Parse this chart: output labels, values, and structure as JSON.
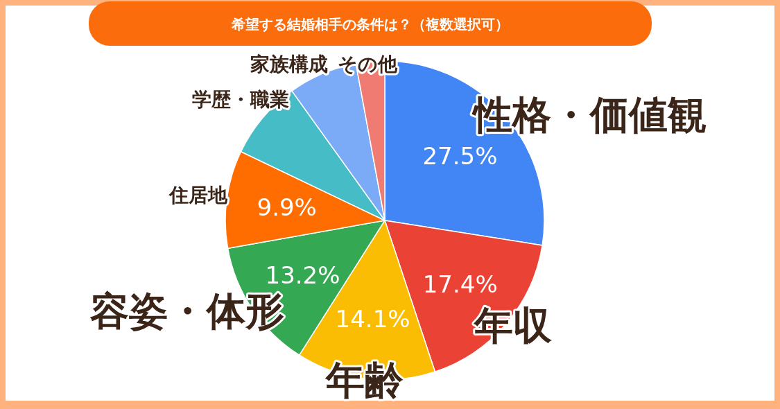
{
  "chart_data": {
    "type": "pie",
    "title": "希望する結婚相手の条件は？（複数選択可）",
    "categories": [
      "性格・価値観",
      "年収",
      "年齢",
      "容姿・体形",
      "住居地",
      "学歴・職業",
      "家族構成",
      "その他"
    ],
    "values": [
      27.5,
      17.4,
      14.1,
      13.2,
      9.9,
      8.0,
      7.0,
      2.9
    ],
    "value_labels": [
      "27.5%",
      "17.4%",
      "14.1%",
      "13.2%",
      "9.9%",
      null,
      null,
      null
    ],
    "colors": [
      "#4285f4",
      "#ea4335",
      "#fbbc04",
      "#34a853",
      "#ff6d01",
      "#46bdc6",
      "#7baaf7",
      "#f07b72"
    ],
    "legend": false
  }
}
